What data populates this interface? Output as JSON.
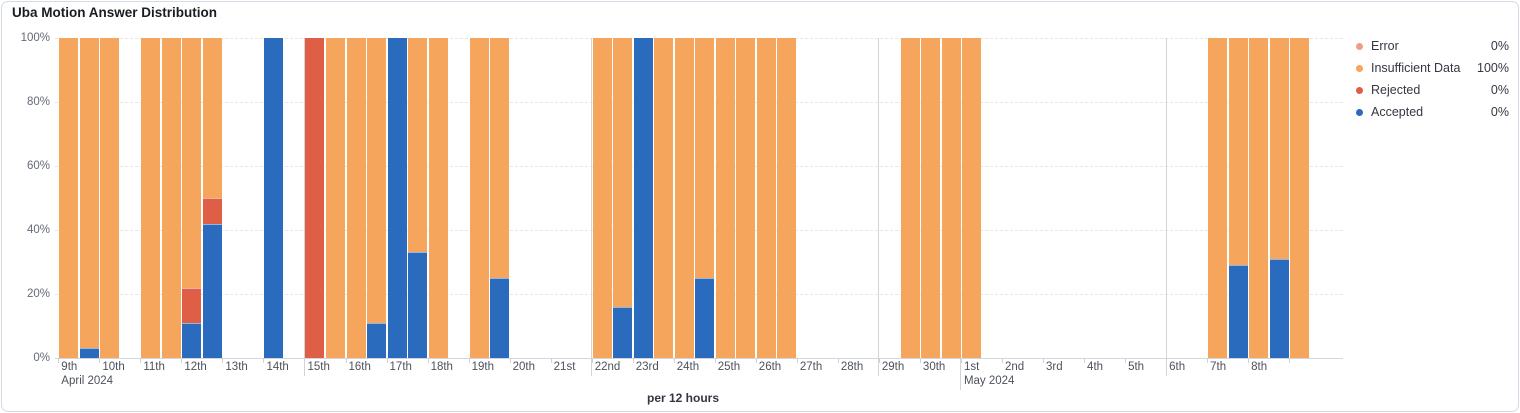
{
  "page": {
    "title": "Uba Motion Answer Distribution",
    "x_axis_caption": "per 12 hours"
  },
  "chart_data": {
    "type": "bar",
    "variant": "stacked-percentage-time-series",
    "title": "Uba Motion Answer Distribution",
    "xlabel": "per 12 hours",
    "ylabel": "",
    "ylim": [
      0,
      100
    ],
    "grid": true,
    "y_tick_labels": [
      "0%",
      "20%",
      "40%",
      "60%",
      "80%",
      "100%"
    ],
    "legend_position": "right",
    "legend": [
      {
        "key": "error",
        "label": "Error",
        "value": "0%",
        "color": "#EE9C8B"
      },
      {
        "key": "insufficient",
        "label": "Insufficient Data",
        "value": "100%",
        "color": "#F6A55C"
      },
      {
        "key": "rejected",
        "label": "Rejected",
        "value": "0%",
        "color": "#DE5E46"
      },
      {
        "key": "accepted",
        "label": "Accepted",
        "value": "0%",
        "color": "#2A6BBE"
      }
    ],
    "series_colors": {
      "accepted": "#2A6BBE",
      "rejected": "#DE5E46",
      "insufficient": "#F6A55C",
      "error": "#EE9C8B"
    },
    "x_axis": {
      "bucket": "12 hours",
      "start_day": "April 9, 2024",
      "days": [
        "9th",
        "10th",
        "11th",
        "12th",
        "13th",
        "14th",
        "15th",
        "16th",
        "17th",
        "18th",
        "19th",
        "20th",
        "21st",
        "22nd",
        "23rd",
        "24th",
        "25th",
        "26th",
        "27th",
        "28th",
        "29th",
        "30th",
        "1st",
        "2nd",
        "3rd",
        "4th",
        "5th",
        "6th",
        "7th",
        "8th",
        ""
      ],
      "month_sublabels": [
        {
          "day_index": 0,
          "label": "April 2024"
        },
        {
          "day_index": 22,
          "label": "May 2024"
        }
      ],
      "marker_day_indices": [
        6,
        13,
        20,
        22,
        27
      ]
    },
    "bar_columns": [
      "day_index",
      "half_day(0=AM,1=PM)",
      "accepted_pct",
      "rejected_pct",
      "insufficient_pct",
      "error_pct"
    ],
    "bars": [
      [
        0,
        0,
        0,
        0,
        100,
        0
      ],
      [
        0,
        1,
        3,
        0,
        97,
        0
      ],
      [
        1,
        0,
        0,
        0,
        100,
        0
      ],
      [
        2,
        0,
        0,
        0,
        100,
        0
      ],
      [
        2,
        1,
        0,
        0,
        100,
        0
      ],
      [
        3,
        0,
        11,
        11,
        78,
        0
      ],
      [
        3,
        1,
        42,
        8,
        50,
        0
      ],
      [
        5,
        0,
        100,
        0,
        0,
        0
      ],
      [
        6,
        0,
        0,
        100,
        0,
        0
      ],
      [
        6,
        1,
        0,
        0,
        100,
        0
      ],
      [
        7,
        0,
        0,
        0,
        100,
        0
      ],
      [
        7,
        1,
        11,
        0,
        89,
        0
      ],
      [
        8,
        0,
        100,
        0,
        0,
        0
      ],
      [
        8,
        1,
        33,
        0,
        67,
        0
      ],
      [
        9,
        0,
        0,
        0,
        100,
        0
      ],
      [
        10,
        0,
        0,
        0,
        100,
        0
      ],
      [
        10,
        1,
        25,
        0,
        75,
        0
      ],
      [
        13,
        0,
        0,
        0,
        100,
        0
      ],
      [
        13,
        1,
        16,
        0,
        84,
        0
      ],
      [
        14,
        0,
        100,
        0,
        0,
        0
      ],
      [
        14,
        1,
        0,
        0,
        100,
        0
      ],
      [
        15,
        0,
        0,
        0,
        100,
        0
      ],
      [
        15,
        1,
        25,
        0,
        75,
        0
      ],
      [
        16,
        0,
        0,
        0,
        100,
        0
      ],
      [
        16,
        1,
        0,
        0,
        100,
        0
      ],
      [
        17,
        0,
        0,
        0,
        100,
        0
      ],
      [
        17,
        1,
        0,
        0,
        100,
        0
      ],
      [
        20,
        1,
        0,
        0,
        100,
        0
      ],
      [
        21,
        0,
        0,
        0,
        100,
        0
      ],
      [
        21,
        1,
        0,
        0,
        100,
        0
      ],
      [
        22,
        0,
        0,
        0,
        100,
        0
      ],
      [
        28,
        0,
        0,
        0,
        100,
        0
      ],
      [
        28,
        1,
        29,
        0,
        71,
        0
      ],
      [
        29,
        0,
        0,
        0,
        100,
        0
      ],
      [
        29,
        1,
        31,
        0,
        69,
        0
      ],
      [
        30,
        0,
        0,
        0,
        100,
        0
      ]
    ]
  }
}
